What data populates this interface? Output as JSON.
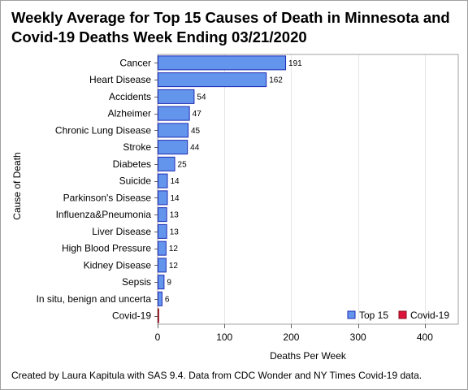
{
  "chart_data": {
    "type": "bar",
    "orientation": "horizontal",
    "title": "Weekly Average for Top 15 Causes of Death in Minnesota and Covid-19 Deaths Week Ending 03/21/2020",
    "xlabel": "Deaths Per Week",
    "ylabel": "Cause of Death",
    "xlim": [
      0,
      450
    ],
    "xticks": [
      0,
      100,
      200,
      300,
      400
    ],
    "grid": "vertical",
    "legend_position": "bottom-right",
    "categories": [
      "Cancer",
      "Heart Disease",
      "Accidents",
      "Alzheimer",
      "Chronic Lung Disease",
      "Stroke",
      "Diabetes",
      "Suicide",
      "Parkinson's Disease",
      "Influenza&Pneumonia",
      "Liver Disease",
      "High Blood Pressure",
      "Kidney Disease",
      "Sepsis",
      "In situ, benign and uncerta",
      "Covid-19"
    ],
    "series": [
      {
        "name": "Top 15",
        "color": "#6495ED",
        "edge_color": "#1E2BB5",
        "values": [
          191,
          162,
          54,
          47,
          45,
          44,
          25,
          14,
          14,
          13,
          13,
          12,
          12,
          9,
          6,
          null
        ]
      },
      {
        "name": "Covid-19",
        "color": "#DC143C",
        "edge_color": "#8B0A1A",
        "values": [
          null,
          null,
          null,
          null,
          null,
          null,
          null,
          null,
          null,
          null,
          null,
          null,
          null,
          null,
          null,
          1
        ]
      }
    ]
  },
  "footnote": "Created by Laura Kapitula with SAS 9.4. Data from CDC Wonder and NY Times Covid-19 data."
}
